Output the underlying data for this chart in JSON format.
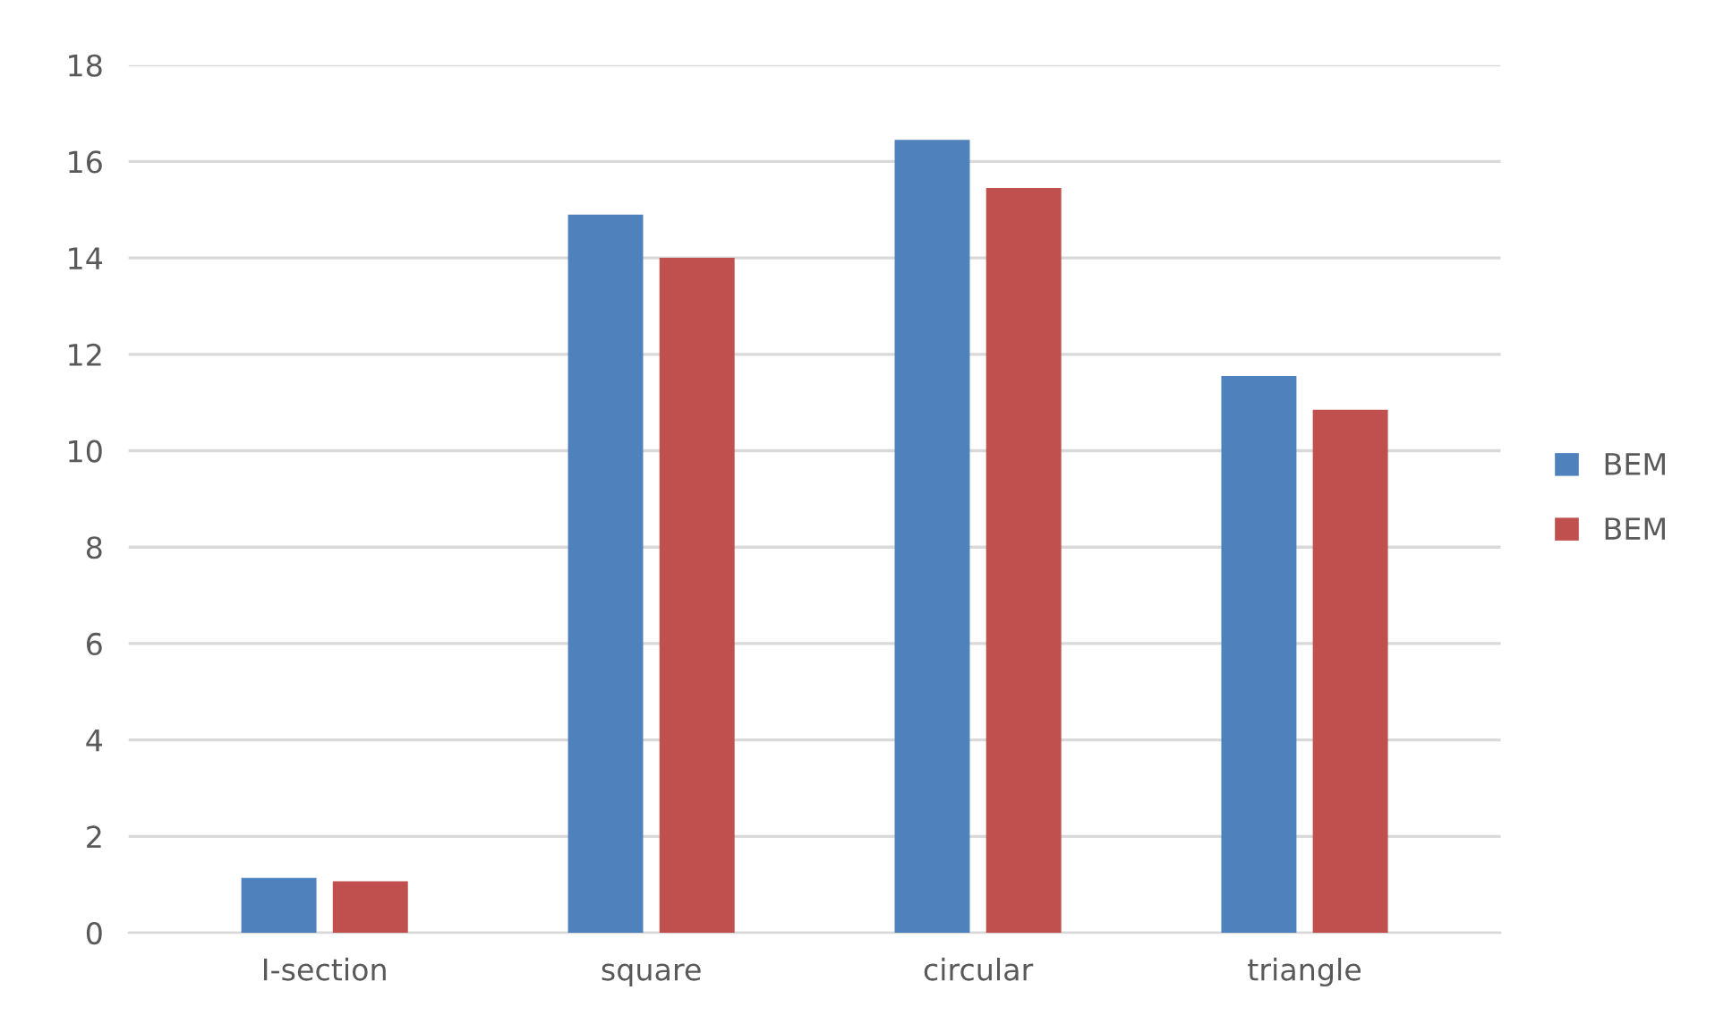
{
  "chart_data": {
    "type": "bar",
    "categories": [
      "I-section",
      "square",
      "circular",
      "triangle"
    ],
    "series": [
      {
        "name": "BEM",
        "color": "#4f81bd",
        "values": [
          1.14,
          14.9,
          16.45,
          11.55
        ]
      },
      {
        "name": "BEM",
        "color": "#c0504d",
        "values": [
          1.07,
          14.0,
          15.45,
          10.85
        ]
      }
    ],
    "ylim": [
      0,
      18
    ],
    "yticks": [
      0,
      2,
      4,
      6,
      8,
      10,
      12,
      14,
      16,
      18
    ],
    "grid": "y",
    "legend": "right"
  }
}
